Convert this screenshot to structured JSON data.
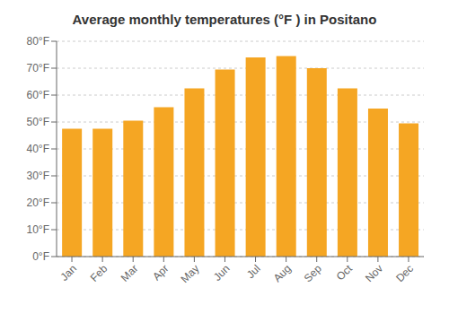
{
  "chart_data": {
    "type": "bar",
    "title": "Average monthly temperatures (°F ) in Positano",
    "categories": [
      "Jan",
      "Feb",
      "Mar",
      "Apr",
      "May",
      "Jun",
      "Jul",
      "Aug",
      "Sep",
      "Oct",
      "Nov",
      "Dec"
    ],
    "values": [
      47.5,
      47.5,
      50.5,
      55.5,
      62.5,
      69.5,
      74.0,
      74.5,
      70.0,
      62.5,
      55.0,
      49.5
    ],
    "color": "#F5A623",
    "ylim": [
      0,
      80
    ],
    "yticks": [
      {
        "value": 0,
        "label": "0°F"
      },
      {
        "value": 10,
        "label": "10°F"
      },
      {
        "value": 20,
        "label": "20°F"
      },
      {
        "value": 30,
        "label": "30°F"
      },
      {
        "value": 40,
        "label": "40°F"
      },
      {
        "value": 50,
        "label": "50°F"
      },
      {
        "value": 60,
        "label": "60°F"
      },
      {
        "value": 70,
        "label": "70°F"
      },
      {
        "value": 80,
        "label": "80°F"
      }
    ],
    "grid": true
  }
}
